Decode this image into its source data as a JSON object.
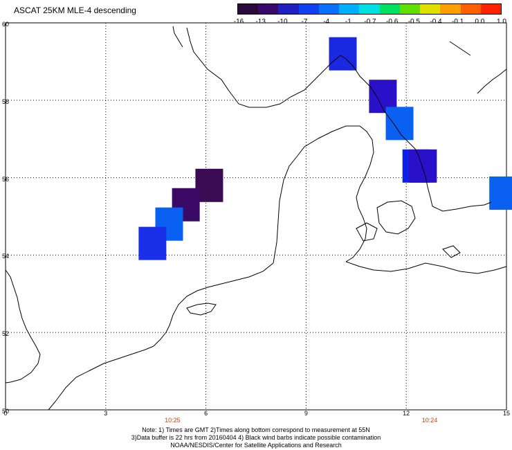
{
  "title": "ASCAT 25KM MLE-4 descending",
  "colorbar": {
    "labels": [
      "-16",
      "-13",
      "-10",
      "-7",
      "-4",
      "-1",
      "-0.7",
      "-0.6",
      "-0.5",
      "-0.4",
      "-0.1",
      "0.0",
      "1.0"
    ],
    "colors": [
      "#2a0a3a",
      "#3a0a6a",
      "#2020c0",
      "#1040f0",
      "#0a70ff",
      "#00b0ff",
      "#00e0e0",
      "#00e060",
      "#60e000",
      "#e0e000",
      "#ffa000",
      "#ff6000",
      "#ff2000"
    ]
  },
  "axes": {
    "lat_ticks": [
      "60",
      "58",
      "56",
      "54",
      "52",
      "50"
    ],
    "lon_ticks": [
      "0",
      "3",
      "6",
      "9",
      "12",
      "15"
    ],
    "lat_range": [
      50,
      60
    ],
    "lon_range": [
      0,
      15
    ]
  },
  "times": [
    {
      "label": "10:25",
      "lon": 5.0
    },
    {
      "label": "10:24",
      "lon": 12.7
    }
  ],
  "cells": [
    {
      "lon": 10.1,
      "lat": 59.2,
      "color": "#1a28e0"
    },
    {
      "lon": 11.3,
      "lat": 58.1,
      "color": "#2a10c8"
    },
    {
      "lon": 11.8,
      "lat": 57.4,
      "color": "#0a60f0"
    },
    {
      "lon": 12.3,
      "lat": 56.3,
      "color": "#1020e0"
    },
    {
      "lon": 12.5,
      "lat": 56.3,
      "color": "#2a10c8"
    },
    {
      "lon": 14.9,
      "lat": 55.6,
      "color": "#0a60f0"
    },
    {
      "lon": 6.1,
      "lat": 55.8,
      "color": "#3a0a52"
    },
    {
      "lon": 5.4,
      "lat": 55.3,
      "color": "#3a0a66"
    },
    {
      "lon": 4.9,
      "lat": 54.8,
      "color": "#0a60f0"
    },
    {
      "lon": 4.4,
      "lat": 54.3,
      "color": "#1a30e8"
    }
  ],
  "notes": [
    "Note: 1) Times are GMT 2)Times along bottom correspond to measurement at 55N",
    "3)Data buffer is 22 hrs from 20160404 4) Black wind barbs indicate possible contamination",
    "NOAA/NESDIS/Center for Satellite Applications and Research"
  ]
}
